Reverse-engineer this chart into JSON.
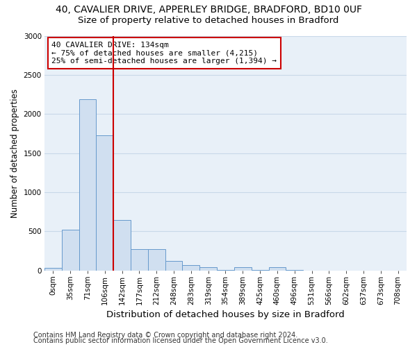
{
  "title_line1": "40, CAVALIER DRIVE, APPERLEY BRIDGE, BRADFORD, BD10 0UF",
  "title_line2": "Size of property relative to detached houses in Bradford",
  "xlabel": "Distribution of detached houses by size in Bradford",
  "ylabel": "Number of detached properties",
  "bar_labels": [
    "0sqm",
    "35sqm",
    "71sqm",
    "106sqm",
    "142sqm",
    "177sqm",
    "212sqm",
    "248sqm",
    "283sqm",
    "319sqm",
    "354sqm",
    "389sqm",
    "425sqm",
    "460sqm",
    "496sqm",
    "531sqm",
    "566sqm",
    "602sqm",
    "637sqm",
    "673sqm",
    "708sqm"
  ],
  "bar_values": [
    28,
    520,
    2185,
    1730,
    640,
    270,
    270,
    120,
    70,
    40,
    5,
    40,
    5,
    40,
    5,
    0,
    0,
    0,
    0,
    0,
    0
  ],
  "bar_color": "#d0dff0",
  "bar_edge_color": "#6699cc",
  "ylim": [
    0,
    3000
  ],
  "yticks": [
    0,
    500,
    1000,
    1500,
    2000,
    2500,
    3000
  ],
  "red_line_index": 4,
  "annotation_text": "40 CAVALIER DRIVE: 134sqm\n← 75% of detached houses are smaller (4,215)\n25% of semi-detached houses are larger (1,394) →",
  "annotation_box_color": "#ffffff",
  "annotation_box_edge": "#cc0000",
  "footer_line1": "Contains HM Land Registry data © Crown copyright and database right 2024.",
  "footer_line2": "Contains public sector information licensed under the Open Government Licence v3.0.",
  "bg_color": "#e8f0f8",
  "grid_color": "#c8d8e8",
  "fig_color": "#ffffff",
  "title1_fontsize": 10,
  "title2_fontsize": 9.5,
  "xlabel_fontsize": 9.5,
  "ylabel_fontsize": 8.5,
  "tick_fontsize": 7.5,
  "ann_fontsize": 8,
  "footer_fontsize": 7
}
